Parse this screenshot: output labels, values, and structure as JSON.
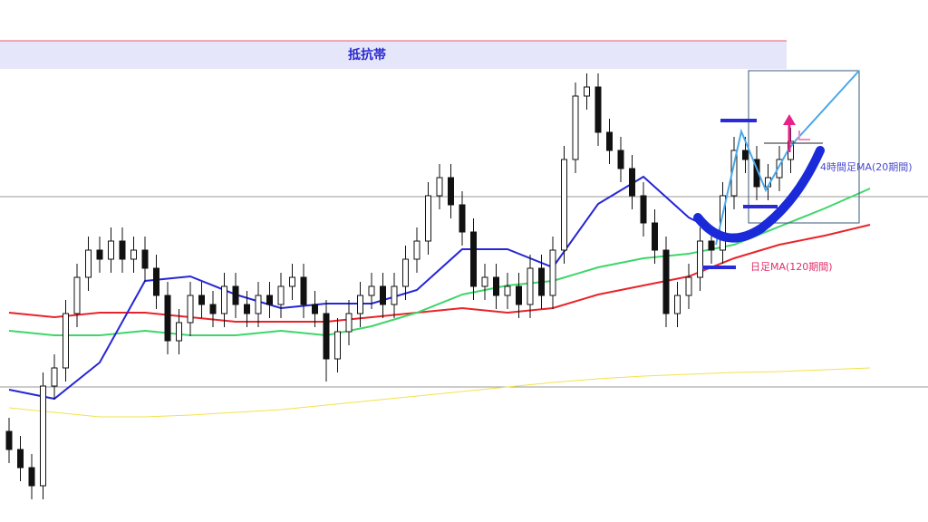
{
  "chart_data": {
    "type": "candlestick",
    "annotations": [
      "抵抗帯",
      "4時間足MA(20期間)",
      "日足MA(120期間)"
    ],
    "ylim": [
      0,
      576
    ],
    "up_color": "#ffffff",
    "down_color": "#111111",
    "open": [
      100,
      80,
      60,
      40,
      150,
      170,
      230,
      270,
      300,
      290,
      310,
      290,
      300,
      280,
      250,
      200,
      220,
      250,
      240,
      230,
      260,
      240,
      230,
      250,
      240,
      260,
      270,
      240,
      230,
      180,
      210,
      230,
      250,
      260,
      240,
      260,
      290,
      310,
      360,
      380,
      350,
      320,
      260,
      270,
      250,
      260,
      240,
      280,
      250,
      300,
      400,
      470,
      480,
      430,
      410,
      390,
      360,
      330,
      300,
      230,
      250,
      270,
      310,
      300,
      360,
      410,
      400,
      370,
      380,
      400
    ],
    "high": [
      115,
      95,
      75,
      165,
      185,
      245,
      285,
      315,
      315,
      325,
      325,
      315,
      315,
      295,
      265,
      235,
      265,
      265,
      255,
      275,
      275,
      255,
      265,
      265,
      275,
      285,
      285,
      255,
      245,
      225,
      245,
      265,
      275,
      275,
      275,
      305,
      325,
      375,
      395,
      395,
      365,
      335,
      285,
      285,
      275,
      275,
      295,
      295,
      315,
      415,
      485,
      495,
      495,
      445,
      425,
      405,
      375,
      345,
      315,
      265,
      285,
      325,
      325,
      375,
      425,
      425,
      415,
      395,
      415,
      435
    ],
    "low": [
      65,
      45,
      25,
      25,
      135,
      155,
      215,
      255,
      275,
      275,
      275,
      275,
      265,
      235,
      185,
      185,
      205,
      225,
      215,
      215,
      225,
      215,
      215,
      225,
      225,
      245,
      225,
      215,
      155,
      165,
      195,
      215,
      235,
      225,
      225,
      245,
      275,
      295,
      345,
      335,
      305,
      245,
      245,
      235,
      235,
      225,
      225,
      235,
      235,
      285,
      385,
      455,
      415,
      395,
      375,
      345,
      315,
      285,
      215,
      215,
      235,
      255,
      285,
      285,
      345,
      385,
      355,
      355,
      365,
      385
    ],
    "close": [
      80,
      60,
      40,
      150,
      170,
      230,
      270,
      300,
      290,
      310,
      290,
      300,
      280,
      250,
      200,
      220,
      250,
      240,
      230,
      260,
      240,
      230,
      250,
      240,
      260,
      270,
      240,
      230,
      180,
      210,
      230,
      250,
      260,
      240,
      260,
      290,
      310,
      360,
      380,
      350,
      320,
      260,
      270,
      250,
      260,
      240,
      280,
      250,
      300,
      400,
      470,
      480,
      430,
      410,
      390,
      360,
      330,
      300,
      230,
      250,
      270,
      310,
      300,
      360,
      410,
      400,
      370,
      380,
      400,
      420
    ],
    "lines": [
      {
        "color": "#f2e24a",
        "x": [
          0,
          4,
          8,
          12,
          16,
          20,
          24,
          28,
          32,
          36,
          40,
          44,
          48,
          52,
          56,
          60,
          64,
          68,
          72,
          76
        ],
        "values": [
          126,
          121,
          116,
          116,
          118,
          121,
          124,
          129,
          134,
          139,
          144,
          149,
          154,
          158,
          161,
          163,
          165,
          166,
          168,
          170
        ]
      },
      {
        "color": "#e8242a",
        "x": [
          0,
          4,
          8,
          12,
          16,
          20,
          24,
          28,
          32,
          36,
          40,
          44,
          48,
          52,
          56,
          60,
          64,
          68,
          72,
          76
        ],
        "values": [
          231,
          226,
          231,
          231,
          226,
          221,
          221,
          221,
          226,
          231,
          236,
          231,
          236,
          251,
          261,
          271,
          291,
          306,
          316,
          328
        ]
      },
      {
        "color": "#3ed66a",
        "x": [
          0,
          4,
          8,
          12,
          16,
          20,
          24,
          28,
          32,
          36,
          40,
          44,
          48,
          52,
          56,
          60,
          64,
          68,
          72,
          76
        ],
        "values": [
          211,
          206,
          206,
          211,
          206,
          206,
          211,
          206,
          216,
          231,
          251,
          261,
          266,
          281,
          291,
          296,
          306,
          326,
          346,
          368
        ]
      },
      {
        "color": "#2626d6",
        "x": [
          0,
          4,
          8,
          12,
          16,
          20,
          24,
          28,
          32,
          36,
          40,
          44,
          48,
          52,
          56,
          60,
          64,
          68,
          72,
          76
        ],
        "values": [
          146,
          136,
          176,
          266,
          271,
          251,
          236,
          241,
          241,
          256,
          301,
          301,
          281,
          351,
          381,
          336,
          311,
          null,
          null,
          null
        ]
      }
    ]
  }
}
